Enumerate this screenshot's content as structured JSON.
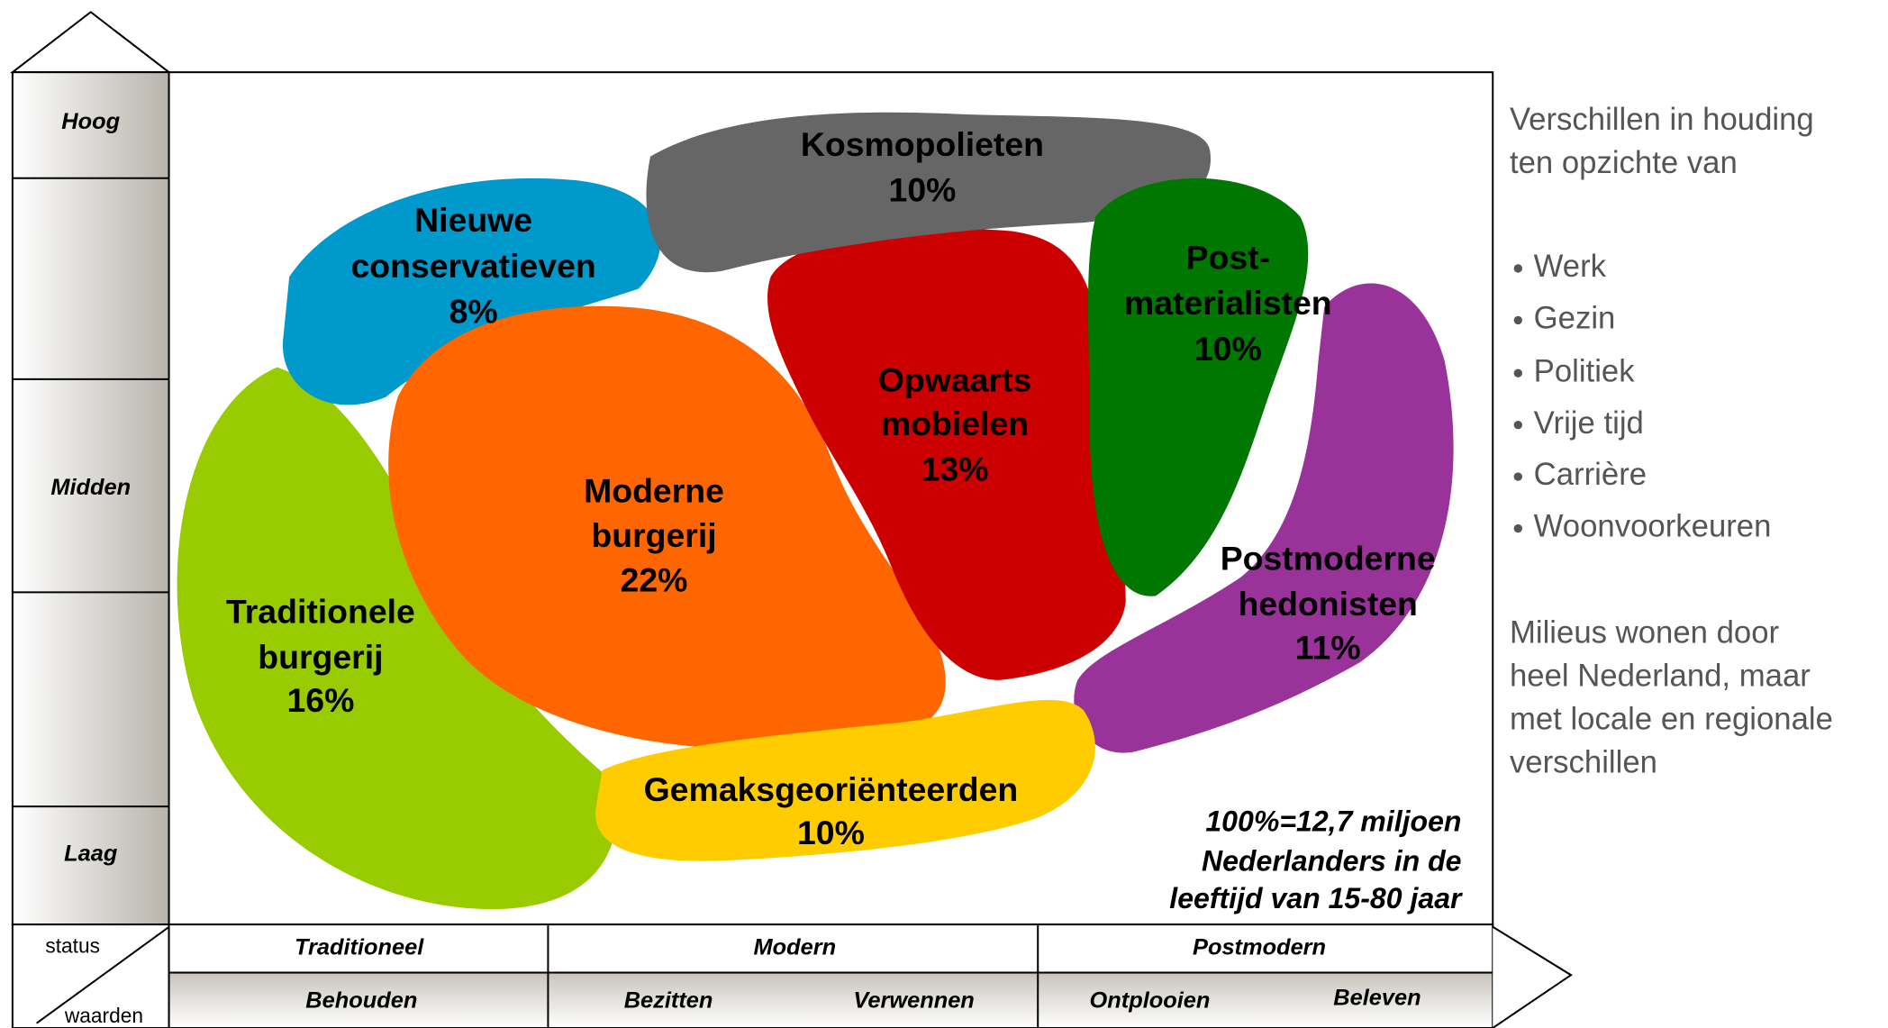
{
  "axis": {
    "rows": [
      "Hoog",
      "Midden",
      "Laag"
    ],
    "corner_top": "status",
    "corner_bottom": "waarden"
  },
  "columns": {
    "status": [
      "Traditioneel",
      "Modern",
      "Postmodern"
    ],
    "waarden": [
      "Behouden",
      "Bezitten",
      "Verwennen",
      "Ontplooien",
      "Beleven"
    ]
  },
  "milieus": [
    {
      "lines": [
        "Nieuwe",
        "conservatieven"
      ],
      "share": "8%"
    },
    {
      "lines": [
        "Kosmopolieten"
      ],
      "share": "10%"
    },
    {
      "lines": [
        "Post-",
        "materialisten"
      ],
      "share": "10%"
    },
    {
      "lines": [
        "Opwaarts",
        "mobielen"
      ],
      "share": "13%"
    },
    {
      "lines": [
        "Moderne",
        "burgerij"
      ],
      "share": "22%"
    },
    {
      "lines": [
        "Postmoderne",
        "hedonisten"
      ],
      "share": "11%"
    },
    {
      "lines": [
        "Traditionele",
        "burgerij"
      ],
      "share": "16%"
    },
    {
      "lines": [
        "Gemaksgeoriënteerden"
      ],
      "share": "10%"
    }
  ],
  "footnote": [
    "100%=12,7 miljoen",
    "Nederlanders in de",
    "leeftijd van 15-80 jaar"
  ],
  "side": {
    "intro": [
      "Verschillen in houding",
      "ten opzichte van"
    ],
    "bullets": [
      "Werk",
      "Gezin",
      "Politiek",
      "Vrije tijd",
      "Carrière",
      "Woonvoorkeuren"
    ],
    "outro": [
      "Milieus wonen door",
      "heel Nederland, maar",
      "met locale en regionale",
      "verschillen"
    ]
  }
}
